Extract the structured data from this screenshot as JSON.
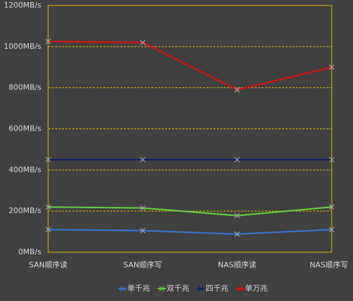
{
  "chart_data": {
    "type": "line",
    "categories": [
      "SAN顺序读",
      "SAN顺序写",
      "NAS顺序读",
      "NAS顺序写"
    ],
    "series": [
      {
        "name": "单千兆",
        "color": "#2e75d6",
        "values": [
          110,
          105,
          88,
          110
        ]
      },
      {
        "name": "双千兆",
        "color": "#5fd33a",
        "values": [
          220,
          215,
          178,
          220
        ]
      },
      {
        "name": "四千兆",
        "color": "#10206e",
        "values": [
          450,
          450,
          450,
          450
        ]
      },
      {
        "name": "单万兆",
        "color": "#d9120f",
        "values": [
          1025,
          1020,
          790,
          900
        ]
      }
    ],
    "marker_color": "#a6a6a6",
    "ylim": [
      0,
      1200
    ],
    "yticks": [
      {
        "value": 0,
        "label": "0MB/s"
      },
      {
        "value": 200,
        "label": "200MB/s"
      },
      {
        "value": 400,
        "label": "400MB/s"
      },
      {
        "value": 600,
        "label": "600MB/s"
      },
      {
        "value": 800,
        "label": "800MB/s"
      },
      {
        "value": 1000,
        "label": "1000MB/s"
      },
      {
        "value": 1200,
        "label": "1200MB/s"
      }
    ],
    "grid": true,
    "grid_color": "#e6b800",
    "legend": "bottom"
  }
}
